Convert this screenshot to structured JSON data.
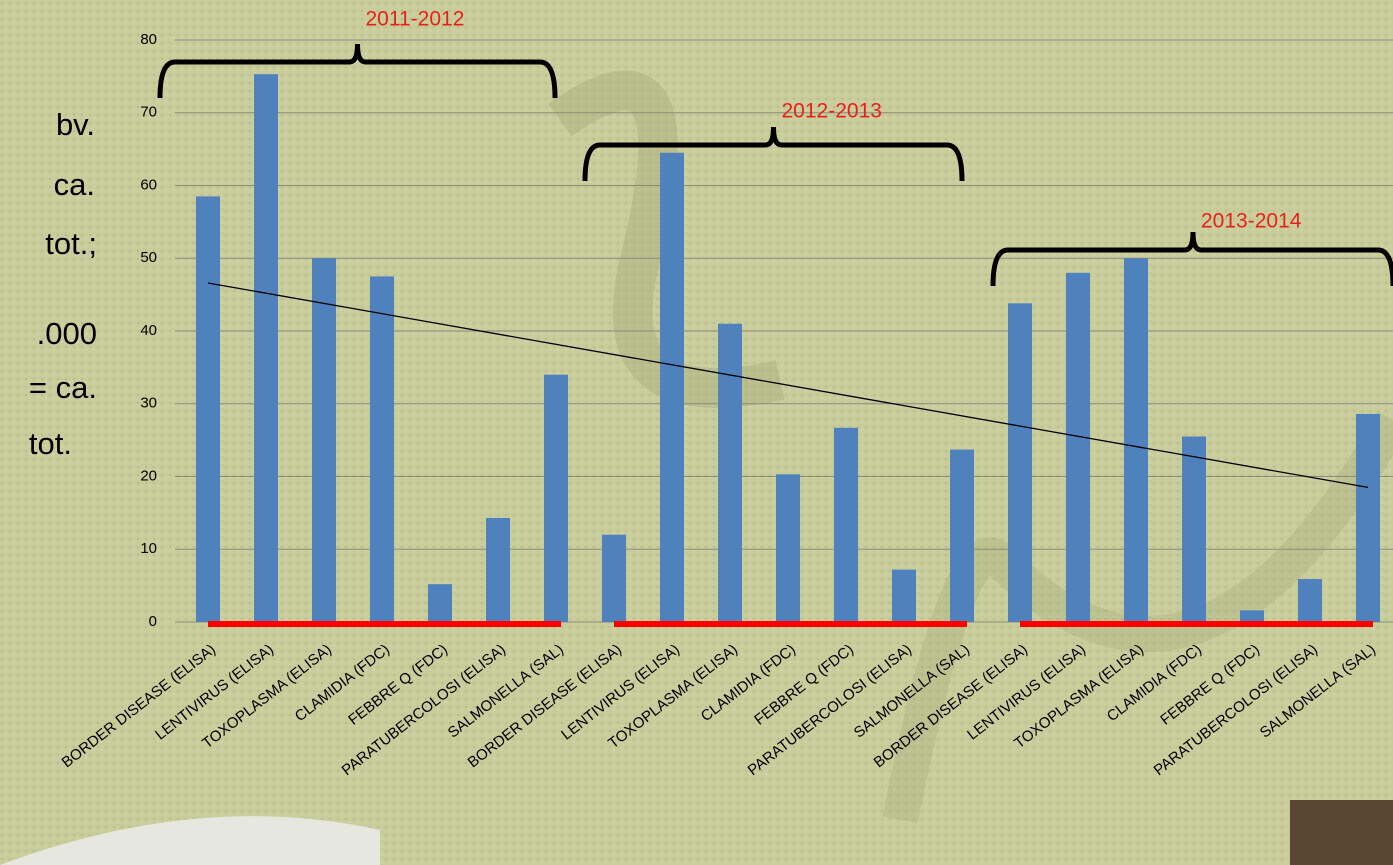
{
  "chart_data": {
    "type": "bar",
    "annotations": [
      "bv.",
      "ca.",
      "tot.;",
      ".000",
      "= ca.",
      "tot."
    ],
    "groups": [
      "2011-2012",
      "2012-2013",
      "2013-2014"
    ],
    "categories": [
      "BORDER DISEASE (ELISA)",
      "LENTIVIRUS (ELISA)",
      "TOXOPLASMA (ELISA)",
      "CLAMIDIA (FDC)",
      "FEBBRE Q (FDC)",
      "PARATUBERCOLOSI (ELISA)",
      "SALMONELLA (SAL)",
      "BORDER DISEASE (ELISA)",
      "LENTIVIRUS (ELISA)",
      "TOXOPLASMA (ELISA)",
      "CLAMIDIA (FDC)",
      "FEBBRE Q (FDC)",
      "PARATUBERCOLOSI (ELISA)",
      "SALMONELLA (SAL)",
      "BORDER DISEASE (ELISA)",
      "LENTIVIRUS (ELISA)",
      "TOXOPLASMA (ELISA)",
      "CLAMIDIA (FDC)",
      "FEBBRE Q (FDC)",
      "PARATUBERCOLOSI (ELISA)",
      "SALMONELLA (SAL)"
    ],
    "values": [
      58.5,
      75.3,
      50,
      47.5,
      5.2,
      14.3,
      34,
      12,
      64.5,
      41,
      20.3,
      26.7,
      7.2,
      23.7,
      43.8,
      48,
      50,
      25.5,
      1.6,
      5.9,
      28.6
    ],
    "color": "#4f81bd",
    "trendline": [
      46.6,
      18.5
    ],
    "ylim": [
      0,
      80
    ],
    "yticks": [
      0,
      10,
      20,
      30,
      40,
      50,
      60,
      70,
      80
    ],
    "grid": true
  }
}
